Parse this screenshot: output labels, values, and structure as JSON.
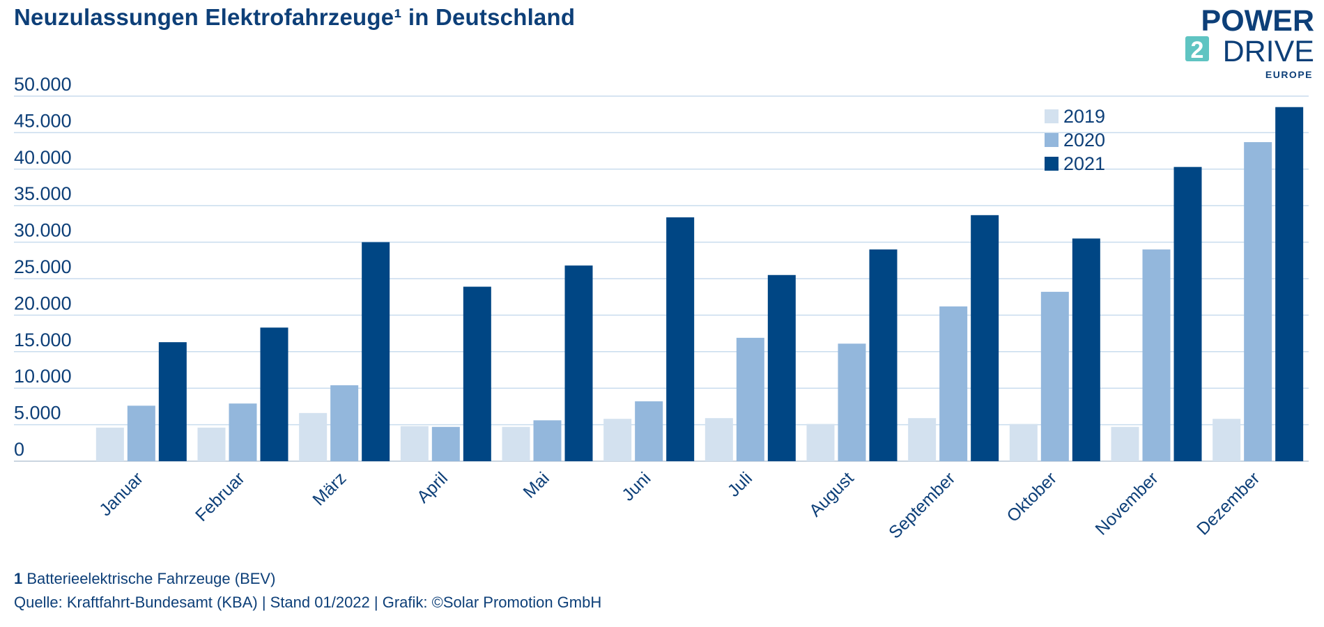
{
  "title": "Neuzulassungen Elektrofahrzeuge¹ in Deutschland",
  "logo": {
    "line1": "POWER",
    "digit": "2",
    "line2": "DRIVE",
    "line3": "EUROPE"
  },
  "footnote": {
    "number": "1",
    "text": "Batterieelektrische Fahrzeuge (BEV)"
  },
  "source": "Quelle: Kraftfahrt-Bundesamt (KBA) | Stand 01/2022 | Grafik: ©Solar Promotion GmbH",
  "colors": {
    "text": "#0d3f78",
    "grid": "#c9dcee",
    "axis": "#b8c7d6",
    "logo_accent": "#5fc4c2"
  },
  "chart_data": {
    "type": "bar",
    "categories": [
      "Januar",
      "Februar",
      "März",
      "April",
      "Mai",
      "Juni",
      "Juli",
      "August",
      "September",
      "Oktober",
      "November",
      "Dezember"
    ],
    "series": [
      {
        "name": "2019",
        "color": "#d3e1ef",
        "values": [
          4600,
          4600,
          6600,
          4800,
          4700,
          5800,
          5900,
          5100,
          5900,
          5100,
          4700,
          5800
        ]
      },
      {
        "name": "2020",
        "color": "#93b7dc",
        "values": [
          7600,
          7900,
          10400,
          4700,
          5600,
          8200,
          16900,
          16100,
          21200,
          23200,
          29000,
          43700
        ]
      },
      {
        "name": "2021",
        "color": "#004684",
        "values": [
          16300,
          18300,
          30000,
          23900,
          26800,
          33400,
          25500,
          29000,
          33700,
          30500,
          40300,
          48500
        ]
      }
    ],
    "yticks": [
      0,
      5000,
      10000,
      15000,
      20000,
      25000,
      30000,
      35000,
      40000,
      45000,
      50000
    ],
    "ytick_labels": [
      "0",
      "5.000",
      "10.000",
      "15.000",
      "20.000",
      "25.000",
      "30.000",
      "35.000",
      "40.000",
      "45.000",
      "50.000"
    ],
    "ylim": [
      0,
      50000
    ],
    "xlabel": "",
    "ylabel": "",
    "grid": true,
    "legend": "top-right"
  }
}
